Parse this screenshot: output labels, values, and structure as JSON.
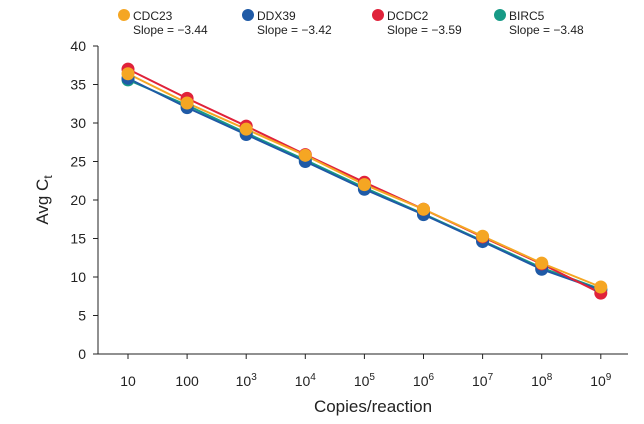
{
  "chart_data": {
    "type": "line",
    "xlabel": "Copies/reaction",
    "ylabel": "Avg C",
    "ylabel_subscript": "t",
    "ylim": [
      0,
      40
    ],
    "yticks": [
      0,
      5,
      10,
      15,
      20,
      25,
      30,
      35,
      40
    ],
    "x": [
      1,
      2,
      3,
      4,
      5,
      6,
      7,
      8,
      9
    ],
    "x_tick_labels": [
      {
        "base": "10",
        "exp": ""
      },
      {
        "base": "100",
        "exp": ""
      },
      {
        "base": "10",
        "exp": "3"
      },
      {
        "base": "10",
        "exp": "4"
      },
      {
        "base": "10",
        "exp": "5"
      },
      {
        "base": "10",
        "exp": "6"
      },
      {
        "base": "10",
        "exp": "7"
      },
      {
        "base": "10",
        "exp": "8"
      },
      {
        "base": "10",
        "exp": "9"
      }
    ],
    "grid": false,
    "legend_position": "top",
    "series": [
      {
        "name": "CDC23",
        "slope_label": "Slope = −3.44",
        "color": "#F5A623",
        "values": [
          36.4,
          32.6,
          29.2,
          25.8,
          22.0,
          18.8,
          15.3,
          11.8,
          8.7
        ]
      },
      {
        "name": "DDX39",
        "slope_label": "Slope = −3.42",
        "color": "#1F5AA6",
        "values": [
          35.8,
          32.0,
          28.5,
          25.0,
          21.4,
          18.1,
          14.6,
          11.0,
          8.3
        ]
      },
      {
        "name": "DCDC2",
        "slope_label": "Slope = −3.59",
        "color": "#E0223A",
        "values": [
          37.0,
          33.2,
          29.6,
          25.9,
          22.3,
          18.8,
          15.2,
          11.7,
          7.9
        ]
      },
      {
        "name": "BIRC5",
        "slope_label": "Slope = −3.48",
        "color": "#179A86",
        "values": [
          35.6,
          32.3,
          28.7,
          25.2,
          21.6,
          18.2,
          14.7,
          11.2,
          8.4
        ]
      }
    ]
  }
}
